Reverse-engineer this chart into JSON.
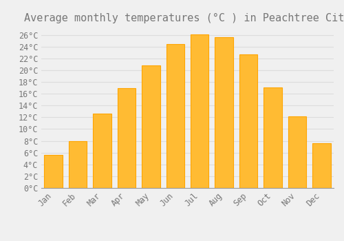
{
  "title": "Average monthly temperatures (°C ) in Peachtree City",
  "months": [
    "Jan",
    "Feb",
    "Mar",
    "Apr",
    "May",
    "Jun",
    "Jul",
    "Aug",
    "Sep",
    "Oct",
    "Nov",
    "Dec"
  ],
  "values": [
    5.6,
    7.9,
    12.6,
    16.9,
    20.8,
    24.4,
    26.1,
    25.6,
    22.7,
    17.1,
    12.1,
    7.6
  ],
  "bar_color": "#FFBB33",
  "bar_edge_color": "#FFA500",
  "background_color": "#F0F0F0",
  "grid_color": "#DDDDDD",
  "text_color": "#777777",
  "ylim": [
    0,
    27
  ],
  "yticks": [
    0,
    2,
    4,
    6,
    8,
    10,
    12,
    14,
    16,
    18,
    20,
    22,
    24,
    26
  ],
  "title_fontsize": 11,
  "tick_fontsize": 8.5,
  "font_family": "monospace",
  "bar_width": 0.75
}
